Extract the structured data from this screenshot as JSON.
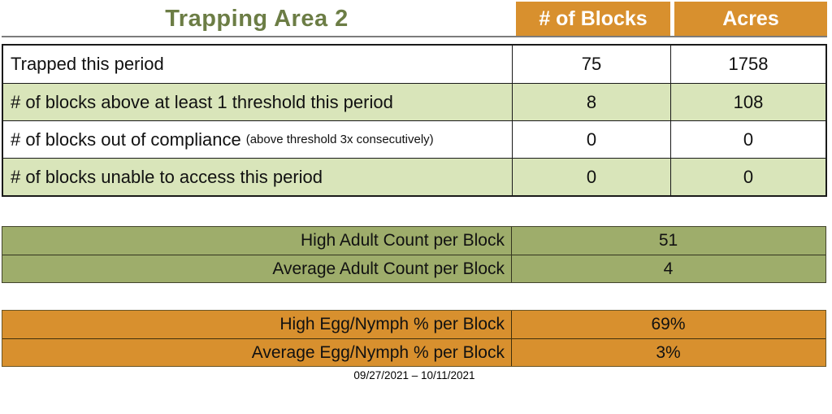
{
  "header": {
    "title": "Trapping Area 2",
    "columns": [
      "# of Blocks",
      "Acres"
    ]
  },
  "summary_table": {
    "rows": [
      {
        "label": "Trapped this period",
        "note": "",
        "blocks": "75",
        "acres": "1758"
      },
      {
        "label": "# of blocks above at least 1 threshold this period",
        "note": "",
        "blocks": "8",
        "acres": "108"
      },
      {
        "label": "# of blocks out of compliance",
        "note": "(above threshold 3x consecutively)",
        "blocks": "0",
        "acres": "0"
      },
      {
        "label": "# of blocks unable to access this period",
        "note": "",
        "blocks": "0",
        "acres": "0"
      }
    ]
  },
  "adult_count_table": {
    "rows": [
      {
        "label": "High Adult Count per Block",
        "value": "51"
      },
      {
        "label": "Average Adult Count per Block",
        "value": "4"
      }
    ]
  },
  "egg_nymph_table": {
    "rows": [
      {
        "label": "High Egg/Nymph % per Block",
        "value": "69%"
      },
      {
        "label": "Average Egg/Nymph % per Block",
        "value": "3%"
      }
    ]
  },
  "footer": {
    "date_range": "09/27/2021 – 10/11/2021"
  },
  "colors": {
    "orange": "#D8902E",
    "light_green": "#D9E5BA",
    "olive": "#9EAD6B",
    "title_green": "#6C7D45"
  }
}
